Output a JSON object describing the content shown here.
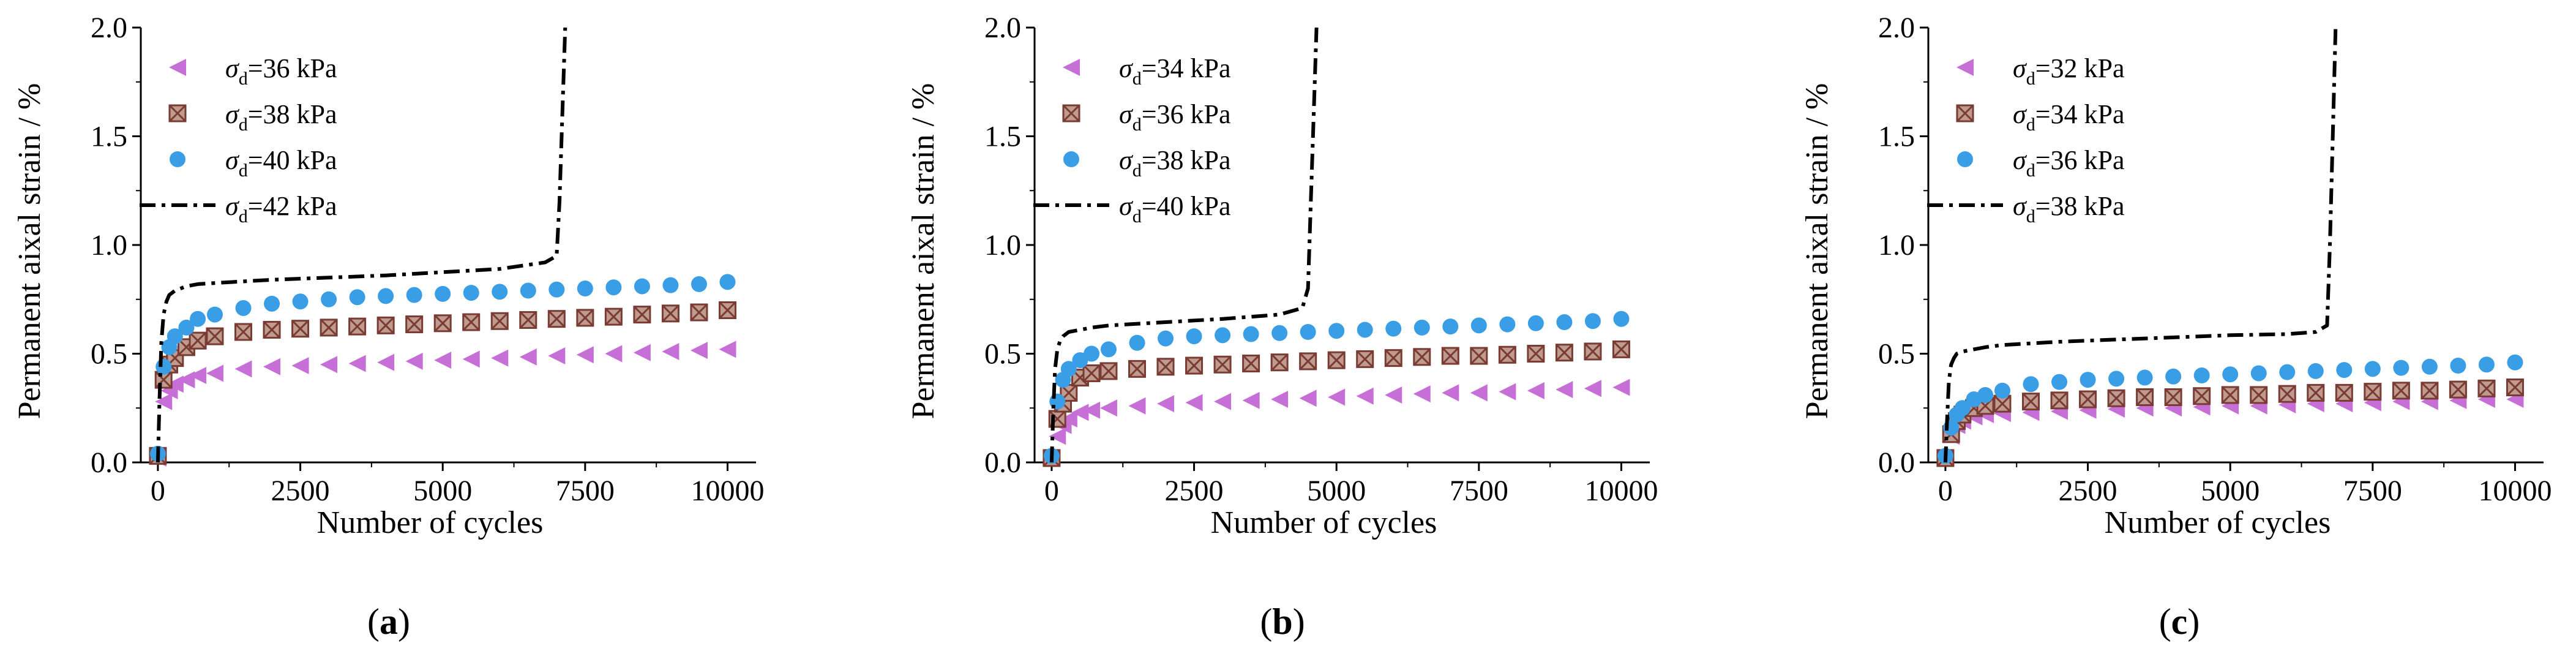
{
  "colors": {
    "triangle": "#c66fd6",
    "square_fill": "#bf9a8f",
    "square_stroke": "#7a3b33",
    "circle": "#3a9ee6",
    "line": "#000000"
  },
  "chart_data": [
    {
      "type": "scatter",
      "panel_label": "a",
      "xlabel": "Number of cycles",
      "ylabel": "Permanent aixal strain / %",
      "xlim": [
        -300,
        10500
      ],
      "ylim": [
        0,
        2
      ],
      "xticks": [
        0,
        2500,
        5000,
        7500,
        10000
      ],
      "xtick_labels": [
        "0",
        "2500",
        "5000",
        "7500",
        "10000"
      ],
      "yticks": [
        0,
        0.5,
        1.0,
        1.5,
        2.0
      ],
      "ytick_labels": [
        "0.0",
        "0.5",
        "1.0",
        "1.5",
        "2.0"
      ],
      "legend_position": "top-left",
      "series": [
        {
          "name": "36 kPa",
          "marker": "triangle",
          "x": [
            0,
            100,
            200,
            300,
            500,
            700,
            1000,
            1500,
            2000,
            2500,
            3000,
            3500,
            4000,
            4500,
            5000,
            5500,
            6000,
            6500,
            7000,
            7500,
            8000,
            8500,
            9000,
            9500,
            10000
          ],
          "y": [
            0.02,
            0.28,
            0.33,
            0.36,
            0.38,
            0.4,
            0.41,
            0.43,
            0.44,
            0.445,
            0.45,
            0.455,
            0.46,
            0.465,
            0.47,
            0.475,
            0.48,
            0.485,
            0.49,
            0.495,
            0.5,
            0.505,
            0.51,
            0.515,
            0.52
          ]
        },
        {
          "name": "38 kPa",
          "marker": "square",
          "x": [
            0,
            100,
            200,
            300,
            500,
            700,
            1000,
            1500,
            2000,
            2500,
            3000,
            3500,
            4000,
            4500,
            5000,
            5500,
            6000,
            6500,
            7000,
            7500,
            8000,
            8500,
            9000,
            9500,
            10000
          ],
          "y": [
            0.03,
            0.38,
            0.45,
            0.48,
            0.53,
            0.56,
            0.58,
            0.6,
            0.61,
            0.615,
            0.62,
            0.625,
            0.63,
            0.635,
            0.64,
            0.645,
            0.65,
            0.655,
            0.66,
            0.665,
            0.67,
            0.68,
            0.685,
            0.69,
            0.7
          ]
        },
        {
          "name": "40 kPa",
          "marker": "circle",
          "x": [
            0,
            100,
            200,
            300,
            500,
            700,
            1000,
            1500,
            2000,
            2500,
            3000,
            3500,
            4000,
            4500,
            5000,
            5500,
            6000,
            6500,
            7000,
            7500,
            8000,
            8500,
            9000,
            9500,
            10000
          ],
          "y": [
            0.04,
            0.44,
            0.53,
            0.58,
            0.62,
            0.66,
            0.68,
            0.71,
            0.73,
            0.74,
            0.75,
            0.76,
            0.765,
            0.77,
            0.775,
            0.78,
            0.785,
            0.79,
            0.795,
            0.8,
            0.805,
            0.81,
            0.815,
            0.82,
            0.83
          ]
        },
        {
          "name": "42 kPa",
          "marker": "dashdot-line",
          "x": [
            0,
            30,
            60,
            100,
            150,
            200,
            300,
            500,
            700,
            1000,
            2000,
            3000,
            4000,
            5000,
            6000,
            6800,
            7000,
            7050,
            7100,
            7150
          ],
          "y": [
            0,
            0.3,
            0.55,
            0.68,
            0.74,
            0.77,
            0.79,
            0.81,
            0.82,
            0.825,
            0.84,
            0.85,
            0.86,
            0.875,
            0.89,
            0.92,
            0.95,
            1.2,
            1.6,
            2.0
          ]
        }
      ]
    },
    {
      "type": "scatter",
      "panel_label": "b",
      "xlabel": "Number of cycles",
      "ylabel": "Permanent aixal strain / %",
      "xlim": [
        -300,
        10500
      ],
      "ylim": [
        0,
        2
      ],
      "xticks": [
        0,
        2500,
        5000,
        7500,
        10000
      ],
      "xtick_labels": [
        "0",
        "2500",
        "5000",
        "7500",
        "10000"
      ],
      "yticks": [
        0,
        0.5,
        1.0,
        1.5,
        2.0
      ],
      "ytick_labels": [
        "0.0",
        "0.5",
        "1.0",
        "1.5",
        "2.0"
      ],
      "legend_position": "top-left",
      "series": [
        {
          "name": "34 kPa",
          "marker": "triangle",
          "x": [
            0,
            100,
            200,
            300,
            500,
            700,
            1000,
            1500,
            2000,
            2500,
            3000,
            3500,
            4000,
            4500,
            5000,
            5500,
            6000,
            6500,
            7000,
            7500,
            8000,
            8500,
            9000,
            9500,
            10000
          ],
          "y": [
            0.02,
            0.12,
            0.17,
            0.2,
            0.23,
            0.24,
            0.25,
            0.26,
            0.27,
            0.275,
            0.28,
            0.285,
            0.29,
            0.295,
            0.3,
            0.305,
            0.31,
            0.315,
            0.32,
            0.32,
            0.325,
            0.33,
            0.335,
            0.34,
            0.345
          ]
        },
        {
          "name": "36 kPa",
          "marker": "square",
          "x": [
            0,
            100,
            200,
            300,
            500,
            700,
            1000,
            1500,
            2000,
            2500,
            3000,
            3500,
            4000,
            4500,
            5000,
            5500,
            6000,
            6500,
            7000,
            7500,
            8000,
            8500,
            9000,
            9500,
            10000
          ],
          "y": [
            0.02,
            0.2,
            0.27,
            0.32,
            0.39,
            0.41,
            0.42,
            0.43,
            0.44,
            0.445,
            0.45,
            0.455,
            0.46,
            0.465,
            0.47,
            0.475,
            0.48,
            0.485,
            0.49,
            0.49,
            0.495,
            0.5,
            0.505,
            0.51,
            0.52
          ]
        },
        {
          "name": "38 kPa",
          "marker": "circle",
          "x": [
            0,
            100,
            200,
            300,
            500,
            700,
            1000,
            1500,
            2000,
            2500,
            3000,
            3500,
            4000,
            4500,
            5000,
            5500,
            6000,
            6500,
            7000,
            7500,
            8000,
            8500,
            9000,
            9500,
            10000
          ],
          "y": [
            0.03,
            0.28,
            0.38,
            0.43,
            0.47,
            0.5,
            0.52,
            0.55,
            0.57,
            0.58,
            0.585,
            0.59,
            0.595,
            0.6,
            0.605,
            0.61,
            0.615,
            0.62,
            0.625,
            0.63,
            0.635,
            0.64,
            0.645,
            0.65,
            0.66
          ]
        },
        {
          "name": "40 kPa",
          "marker": "dashdot-line",
          "x": [
            0,
            30,
            60,
            100,
            150,
            200,
            300,
            500,
            700,
            1000,
            2000,
            3000,
            4000,
            4400,
            4500,
            4550,
            4600,
            4650
          ],
          "y": [
            0,
            0.25,
            0.43,
            0.52,
            0.56,
            0.58,
            0.6,
            0.61,
            0.62,
            0.63,
            0.645,
            0.66,
            0.68,
            0.71,
            0.8,
            1.2,
            1.6,
            2.0
          ]
        }
      ]
    },
    {
      "type": "scatter",
      "panel_label": "c",
      "xlabel": "Number of cycles",
      "ylabel": "Permanent aixal strain / %",
      "xlim": [
        -300,
        10500
      ],
      "ylim": [
        0,
        2
      ],
      "xticks": [
        0,
        2500,
        5000,
        7500,
        10000
      ],
      "xtick_labels": [
        "0",
        "2500",
        "5000",
        "7500",
        "10000"
      ],
      "yticks": [
        0,
        0.5,
        1.0,
        1.5,
        2.0
      ],
      "ytick_labels": [
        "0.0",
        "0.5",
        "1.0",
        "1.5",
        "2.0"
      ],
      "legend_position": "top-left",
      "series": [
        {
          "name": "32 kPa",
          "marker": "triangle",
          "x": [
            0,
            100,
            200,
            300,
            500,
            700,
            1000,
            1500,
            2000,
            2500,
            3000,
            3500,
            4000,
            4500,
            5000,
            5500,
            6000,
            6500,
            7000,
            7500,
            8000,
            8500,
            9000,
            9500,
            10000
          ],
          "y": [
            0.02,
            0.12,
            0.17,
            0.19,
            0.21,
            0.22,
            0.225,
            0.23,
            0.235,
            0.24,
            0.245,
            0.25,
            0.25,
            0.255,
            0.26,
            0.26,
            0.265,
            0.27,
            0.27,
            0.275,
            0.28,
            0.28,
            0.285,
            0.29,
            0.29
          ]
        },
        {
          "name": "34 kPa",
          "marker": "square",
          "x": [
            0,
            100,
            200,
            300,
            500,
            700,
            1000,
            1500,
            2000,
            2500,
            3000,
            3500,
            4000,
            4500,
            5000,
            5500,
            6000,
            6500,
            7000,
            7500,
            8000,
            8500,
            9000,
            9500,
            10000
          ],
          "y": [
            0.02,
            0.13,
            0.19,
            0.22,
            0.25,
            0.26,
            0.27,
            0.28,
            0.285,
            0.29,
            0.295,
            0.3,
            0.3,
            0.305,
            0.31,
            0.31,
            0.315,
            0.32,
            0.32,
            0.325,
            0.33,
            0.33,
            0.335,
            0.34,
            0.345
          ]
        },
        {
          "name": "36 kPa",
          "marker": "circle",
          "x": [
            0,
            100,
            200,
            300,
            500,
            700,
            1000,
            1500,
            2000,
            2500,
            3000,
            3500,
            4000,
            4500,
            5000,
            5500,
            6000,
            6500,
            7000,
            7500,
            8000,
            8500,
            9000,
            9500,
            10000
          ],
          "y": [
            0.03,
            0.16,
            0.22,
            0.25,
            0.29,
            0.31,
            0.33,
            0.36,
            0.37,
            0.38,
            0.385,
            0.39,
            0.395,
            0.4,
            0.405,
            0.41,
            0.415,
            0.42,
            0.425,
            0.43,
            0.435,
            0.44,
            0.445,
            0.45,
            0.46
          ]
        },
        {
          "name": "38 kPa",
          "marker": "dashdot-line",
          "x": [
            0,
            30,
            60,
            100,
            150,
            200,
            300,
            500,
            700,
            1000,
            2000,
            3000,
            4000,
            5000,
            6000,
            6500,
            6700,
            6750,
            6800,
            6850
          ],
          "y": [
            0,
            0.2,
            0.37,
            0.45,
            0.48,
            0.5,
            0.51,
            0.52,
            0.53,
            0.54,
            0.555,
            0.565,
            0.575,
            0.585,
            0.59,
            0.6,
            0.63,
            1.0,
            1.5,
            2.0
          ]
        }
      ]
    }
  ]
}
